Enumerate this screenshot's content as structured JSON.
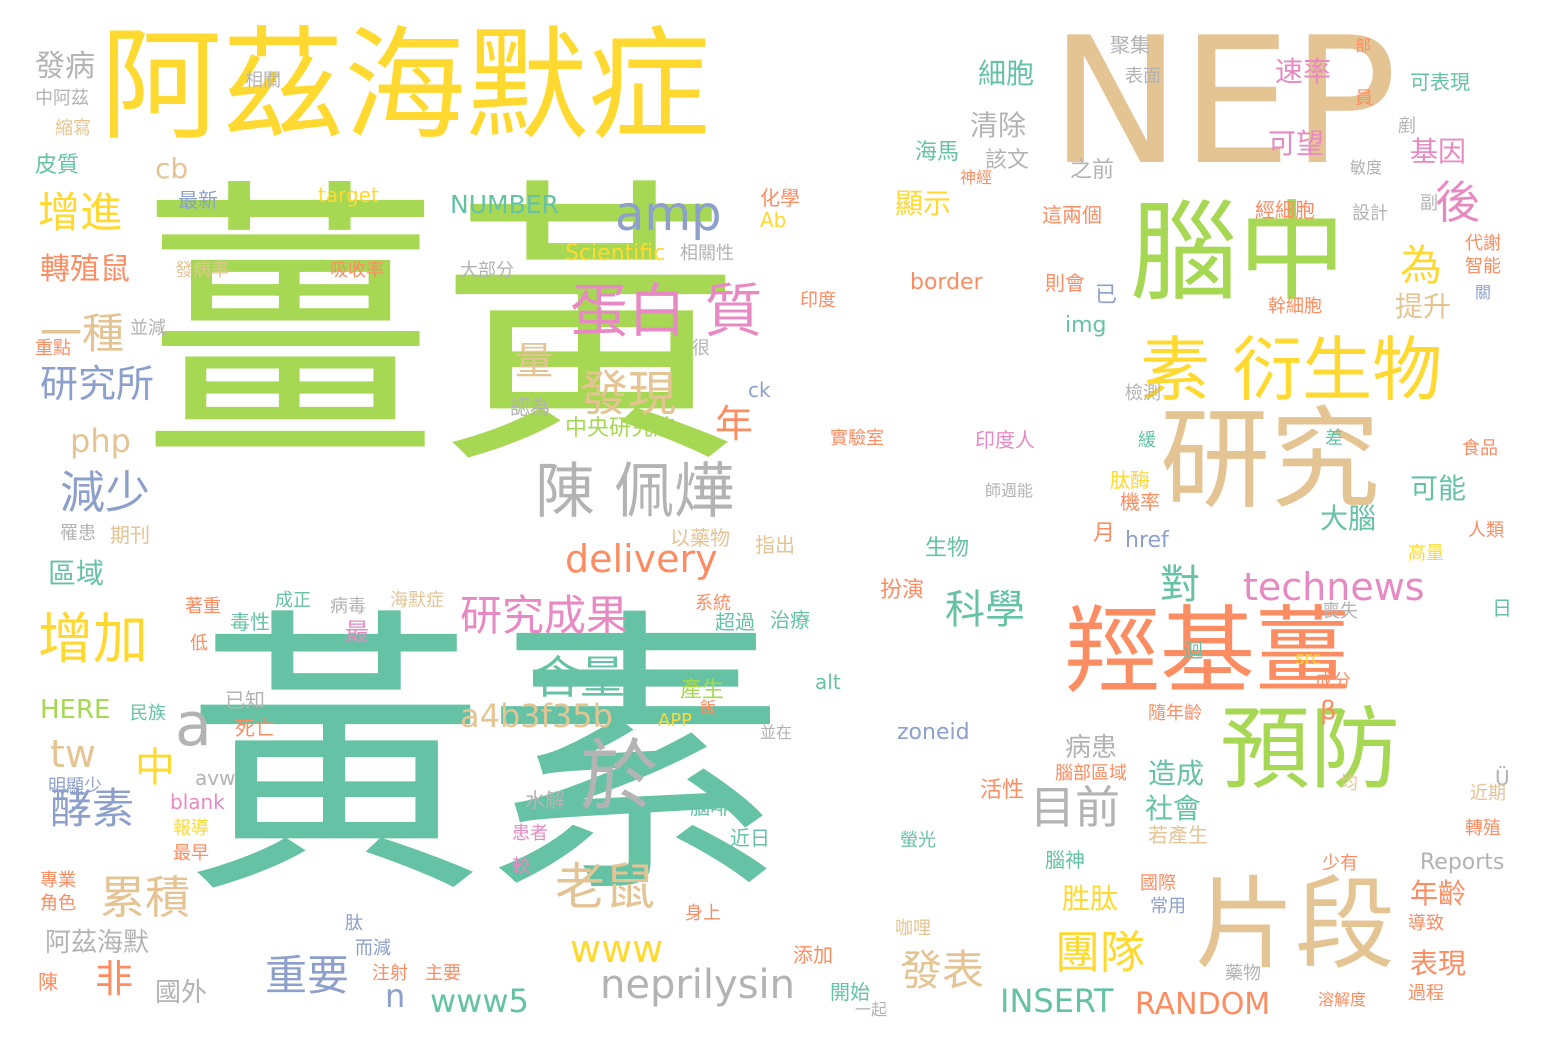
{
  "palette": {
    "green": "#A6D854",
    "teal": "#66C2A5",
    "tan": "#E5C494",
    "yellow": "#FFD92F",
    "orange": "#FC8D62",
    "pink": "#E78AC3",
    "blue": "#8DA0CB",
    "gray": "#B3B3B3"
  },
  "words": [
    {
      "id": "huangjiang",
      "text": "薑黃",
      "color": "green"
    },
    {
      "id": "huangsu",
      "text": "黃素",
      "color": "teal"
    },
    {
      "id": "alzheimer",
      "text": "阿茲海默症",
      "color": "yellow"
    },
    {
      "id": "nep",
      "text": "NEP",
      "color": "tan"
    },
    {
      "id": "naozhong",
      "text": "腦中",
      "color": "green"
    },
    {
      "id": "yanjiu",
      "text": "研究",
      "color": "tan"
    },
    {
      "id": "qiangji",
      "text": "羥基薑",
      "color": "orange"
    },
    {
      "id": "yufang",
      "text": "預防",
      "color": "green"
    },
    {
      "id": "pianduan",
      "text": "片段",
      "color": "tan"
    },
    {
      "id": "su-yanshengwu",
      "text": "素 衍生物",
      "color": "yellow"
    },
    {
      "id": "danbaizhi",
      "text": "蛋白 質",
      "color": "pink"
    },
    {
      "id": "chenpeihua",
      "text": "陳 佩燁",
      "color": "gray"
    },
    {
      "id": "yu",
      "text": "於",
      "color": "gray"
    },
    {
      "id": "zengjia",
      "text": "增加",
      "color": "yellow"
    },
    {
      "id": "amp",
      "text": "amp",
      "color": "blue"
    },
    {
      "id": "faxian",
      "text": "發現",
      "color": "tan"
    },
    {
      "id": "yanjiuchengguo",
      "text": "研究成果",
      "color": "pink"
    },
    {
      "id": "technews",
      "text": "technews",
      "color": "pink"
    },
    {
      "id": "zengjin",
      "text": "增進",
      "color": "yellow"
    },
    {
      "id": "jianshao",
      "text": "減少",
      "color": "blue"
    },
    {
      "id": "meisu",
      "text": "酵素",
      "color": "blue"
    },
    {
      "id": "leiji",
      "text": "累積",
      "color": "tan"
    },
    {
      "id": "laoshu",
      "text": "老鼠",
      "color": "tan"
    },
    {
      "id": "neprilysin",
      "text": "neprilysin",
      "color": "gray"
    },
    {
      "id": "www5",
      "text": "www5",
      "color": "teal"
    },
    {
      "id": "www",
      "text": "www",
      "color": "yellow"
    },
    {
      "id": "tuandui",
      "text": "團隊",
      "color": "yellow"
    },
    {
      "id": "mubiao",
      "text": "目前",
      "color": "gray"
    },
    {
      "id": "yanjiusuo",
      "text": "研究所",
      "color": "blue"
    },
    {
      "id": "delivery",
      "text": "delivery",
      "color": "orange"
    },
    {
      "id": "hanliang",
      "text": "含量",
      "color": "teal"
    },
    {
      "id": "a4b3",
      "text": "a4b3f35b",
      "color": "tan"
    },
    {
      "id": "zhuanzhishu",
      "text": "轉殖鼠",
      "color": "orange"
    },
    {
      "id": "kexue",
      "text": "科學",
      "color": "teal"
    },
    {
      "id": "dui",
      "text": "對",
      "color": "teal"
    },
    {
      "id": "yizhong",
      "text": "一種",
      "color": "tan"
    },
    {
      "id": "zhongyao",
      "text": "重要",
      "color": "blue"
    },
    {
      "id": "fabiao",
      "text": "發表",
      "color": "tan"
    },
    {
      "id": "insert",
      "text": "INSERT",
      "color": "teal"
    },
    {
      "id": "random",
      "text": "RANDOM",
      "color": "orange"
    },
    {
      "id": "tw",
      "text": "tw",
      "color": "tan"
    },
    {
      "id": "zhong-small",
      "text": "中",
      "color": "yellow"
    },
    {
      "id": "fei",
      "text": "非",
      "color": "orange"
    },
    {
      "id": "php",
      "text": "php",
      "color": "tan"
    },
    {
      "id": "nian",
      "text": "年",
      "color": "orange"
    },
    {
      "id": "houhou",
      "text": "後",
      "color": "pink"
    },
    {
      "id": "wei",
      "text": "為",
      "color": "yellow"
    },
    {
      "id": "a",
      "text": "a",
      "color": "gray"
    },
    {
      "id": "n",
      "text": "n",
      "color": "blue"
    },
    {
      "id": "liang",
      "text": "量",
      "color": "tan"
    },
    {
      "id": "number",
      "text": "NUMBER",
      "color": "teal"
    },
    {
      "id": "cb",
      "text": "cb",
      "color": "tan"
    },
    {
      "id": "xianshi",
      "text": "顯示",
      "color": "yellow"
    },
    {
      "id": "qingchu",
      "text": "清除",
      "color": "gray"
    },
    {
      "id": "xibao",
      "text": "細胞",
      "color": "teal"
    },
    {
      "id": "sulv",
      "text": "速率",
      "color": "pink"
    },
    {
      "id": "kewang",
      "text": "可望",
      "color": "pink"
    },
    {
      "id": "jiyin",
      "text": "基因",
      "color": "pink"
    },
    {
      "id": "tisheng",
      "text": "提升",
      "color": "tan"
    },
    {
      "id": "keneng",
      "text": "可能",
      "color": "teal"
    },
    {
      "id": "danao",
      "text": "大腦",
      "color": "teal"
    },
    {
      "id": "niannling",
      "text": "年齡",
      "color": "orange"
    },
    {
      "id": "biaoxian",
      "text": "表現",
      "color": "orange"
    },
    {
      "id": "shehui",
      "text": "社會",
      "color": "teal"
    },
    {
      "id": "zaocheng",
      "text": "造成",
      "color": "teal"
    },
    {
      "id": "bingzhe",
      "text": "病患",
      "color": "gray"
    },
    {
      "id": "shengtai",
      "text": "胜肽",
      "color": "yellow"
    },
    {
      "id": "quyu",
      "text": "區域",
      "color": "teal"
    },
    {
      "id": "zui",
      "text": "最",
      "color": "pink"
    },
    {
      "id": "fabing",
      "text": "發病",
      "color": "gray"
    },
    {
      "id": "pizhi",
      "text": "皮質",
      "color": "teal"
    },
    {
      "id": "here",
      "text": "HERE",
      "color": "green"
    },
    {
      "id": "azhm",
      "text": "阿茲海默",
      "color": "gray"
    },
    {
      "id": "guowai",
      "text": "國外",
      "color": "gray"
    },
    {
      "id": "ab",
      "text": "Ab",
      "color": "yellow"
    },
    {
      "id": "target",
      "text": "target",
      "color": "yellow"
    },
    {
      "id": "scientific",
      "text": "Scientific",
      "color": "yellow"
    },
    {
      "id": "border",
      "text": "border",
      "color": "orange"
    },
    {
      "id": "img",
      "text": "img",
      "color": "teal"
    },
    {
      "id": "ck",
      "text": "ck",
      "color": "blue"
    },
    {
      "id": "href",
      "text": "href",
      "color": "blue"
    },
    {
      "id": "alt",
      "text": "alt",
      "color": "teal"
    },
    {
      "id": "zoneid",
      "text": "zoneid",
      "color": "blue"
    },
    {
      "id": "app",
      "text": "APP",
      "color": "yellow"
    },
    {
      "id": "src",
      "text": "src",
      "color": "yellow"
    },
    {
      "id": "blank",
      "text": "blank",
      "color": "pink"
    },
    {
      "id": "avw",
      "text": "avw",
      "color": "gray"
    },
    {
      "id": "reports",
      "text": "Reports",
      "color": "gray"
    },
    {
      "id": "beta",
      "text": "β",
      "color": "orange"
    },
    {
      "id": "u-uml",
      "text": "Ü",
      "color": "gray"
    },
    {
      "id": "zhongyanjiuyuan",
      "text": "中央研究院",
      "color": "green"
    },
    {
      "id": "huaxue",
      "text": "化學",
      "color": "orange"
    },
    {
      "id": "haima",
      "text": "海馬",
      "color": "teal"
    },
    {
      "id": "gaiwen",
      "text": "該文",
      "color": "gray"
    },
    {
      "id": "zhiqian",
      "text": "之前",
      "color": "gray"
    },
    {
      "id": "juji",
      "text": "聚集",
      "color": "gray"
    },
    {
      "id": "biaomian",
      "text": "表面",
      "color": "gray"
    },
    {
      "id": "kebiaoxian",
      "text": "可表現",
      "color": "teal"
    },
    {
      "id": "zhongazi",
      "text": "中阿茲",
      "color": "gray"
    },
    {
      "id": "xiangguan",
      "text": "相關",
      "color": "gray"
    },
    {
      "id": "suoduan",
      "text": "縮寫",
      "color": "tan"
    },
    {
      "id": "zuixin",
      "text": "最新",
      "color": "blue"
    },
    {
      "id": "zhelianggе",
      "text": "這兩個",
      "color": "orange"
    },
    {
      "id": "jingxibao",
      "text": "經細胞",
      "color": "orange"
    },
    {
      "id": "sheji",
      "text": "設計",
      "color": "gray"
    },
    {
      "id": "fu",
      "text": "副",
      "color": "gray"
    },
    {
      "id": "daixie",
      "text": "代謝",
      "color": "orange"
    },
    {
      "id": "zhineng",
      "text": "智能",
      "color": "orange"
    },
    {
      "id": "fabinglv",
      "text": "發病率",
      "color": "tan"
    },
    {
      "id": "xishoulv",
      "text": "吸收率",
      "color": "orange"
    },
    {
      "id": "dabufen",
      "text": "大部分",
      "color": "gray"
    },
    {
      "id": "xiangguanxing",
      "text": "相關性",
      "color": "gray"
    },
    {
      "id": "yindu",
      "text": "印度",
      "color": "orange"
    },
    {
      "id": "zehui",
      "text": "則會",
      "color": "orange"
    },
    {
      "id": "ganxibao",
      "text": "幹細胞",
      "color": "orange"
    },
    {
      "id": "bingjian",
      "text": "並減",
      "color": "gray"
    },
    {
      "id": "zhongdian",
      "text": "重點",
      "color": "orange"
    },
    {
      "id": "hen",
      "text": "很",
      "color": "gray"
    },
    {
      "id": "jiance",
      "text": "檢測",
      "color": "gray"
    },
    {
      "id": "shiyanshi",
      "text": "實驗室",
      "color": "orange"
    },
    {
      "id": "yindu-ren",
      "text": "印度人",
      "color": "pink"
    },
    {
      "id": "shipin",
      "text": "食品",
      "color": "orange"
    },
    {
      "id": "renwei",
      "text": "認為",
      "color": "gray"
    },
    {
      "id": "taimei",
      "text": "肽酶",
      "color": "yellow"
    },
    {
      "id": "jilv",
      "text": "機率",
      "color": "orange"
    },
    {
      "id": "gaoliang",
      "text": "高量",
      "color": "yellow"
    },
    {
      "id": "renlei",
      "text": "人類",
      "color": "orange"
    },
    {
      "id": "qikan",
      "text": "期刊",
      "color": "tan"
    },
    {
      "id": "yiyaowu",
      "text": "以藥物",
      "color": "tan"
    },
    {
      "id": "zhichu",
      "text": "指出",
      "color": "tan"
    },
    {
      "id": "shengwu",
      "text": "生物",
      "color": "teal"
    },
    {
      "id": "yue",
      "text": "月",
      "color": "orange"
    },
    {
      "id": "banyan",
      "text": "扮演",
      "color": "orange"
    },
    {
      "id": "zhuzhong",
      "text": "著重",
      "color": "orange"
    },
    {
      "id": "chengzheng",
      "text": "成正",
      "color": "teal"
    },
    {
      "id": "bingdu",
      "text": "病毒",
      "color": "gray"
    },
    {
      "id": "haimozheng",
      "text": "海默症",
      "color": "tan"
    },
    {
      "id": "xitong",
      "text": "系統",
      "color": "orange"
    },
    {
      "id": "duxing",
      "text": "毒性",
      "color": "teal"
    },
    {
      "id": "chaoguo",
      "text": "超過",
      "color": "teal"
    },
    {
      "id": "zhiliao",
      "text": "治療",
      "color": "teal"
    },
    {
      "id": "sangshi",
      "text": "喪失",
      "color": "gray"
    },
    {
      "id": "ri",
      "text": "日",
      "color": "teal"
    },
    {
      "id": "chengfen",
      "text": "成分",
      "color": "orange"
    },
    {
      "id": "chansheng",
      "text": "產生",
      "color": "green"
    },
    {
      "id": "minzu",
      "text": "民族",
      "color": "teal"
    },
    {
      "id": "yizhi",
      "text": "已知",
      "color": "gray"
    },
    {
      "id": "siwang",
      "text": "死亡",
      "color": "orange"
    },
    {
      "id": "mingxianshao",
      "text": "明顯少",
      "color": "blue"
    },
    {
      "id": "baodao",
      "text": "報導",
      "color": "yellow"
    },
    {
      "id": "zuizao",
      "text": "最早",
      "color": "orange"
    },
    {
      "id": "zhuanye",
      "text": "專業",
      "color": "orange"
    },
    {
      "id": "jiaose",
      "text": "角色",
      "color": "orange"
    },
    {
      "id": "chen-small",
      "text": "陳",
      "color": "orange"
    },
    {
      "id": "shuijie",
      "text": "水解",
      "color": "gray"
    },
    {
      "id": "huanzhe",
      "text": "患者",
      "color": "pink"
    },
    {
      "id": "jiao",
      "text": "較",
      "color": "pink"
    },
    {
      "id": "naofei",
      "text": "腦啡",
      "color": "teal"
    },
    {
      "id": "jinri",
      "text": "近日",
      "color": "teal"
    },
    {
      "id": "yingguang",
      "text": "螢光",
      "color": "teal"
    },
    {
      "id": "naoshen",
      "text": "腦神",
      "color": "teal"
    },
    {
      "id": "guoji",
      "text": "國際",
      "color": "orange"
    },
    {
      "id": "changyong",
      "text": "常用",
      "color": "blue"
    },
    {
      "id": "shenshang",
      "text": "身上",
      "color": "orange"
    },
    {
      "id": "tianjia",
      "text": "添加",
      "color": "orange"
    },
    {
      "id": "kali",
      "text": "咖哩",
      "color": "tan"
    },
    {
      "id": "daozhi",
      "text": "導致",
      "color": "orange"
    },
    {
      "id": "guocheng",
      "text": "過程",
      "color": "orange"
    },
    {
      "id": "yaowu",
      "text": "藥物",
      "color": "gray"
    },
    {
      "id": "rongjieduo",
      "text": "溶解度",
      "color": "orange"
    },
    {
      "id": "shaoyou",
      "text": "少有",
      "color": "orange"
    },
    {
      "id": "zhuanzhi",
      "text": "轉殖",
      "color": "orange"
    },
    {
      "id": "jinqi",
      "text": "近期",
      "color": "tan"
    },
    {
      "id": "junyun",
      "text": "均",
      "color": "tan"
    },
    {
      "id": "tai",
      "text": "肽",
      "color": "blue"
    },
    {
      "id": "erjian",
      "text": "而減",
      "color": "blue"
    },
    {
      "id": "zhushe",
      "text": "注射",
      "color": "orange"
    },
    {
      "id": "zhuyao",
      "text": "主要",
      "color": "orange"
    },
    {
      "id": "kaishi",
      "text": "開始",
      "color": "teal"
    },
    {
      "id": "yiqi",
      "text": "一起",
      "color": "gray"
    },
    {
      "id": "bingzai",
      "text": "並在",
      "color": "gray"
    },
    {
      "id": "suinianling",
      "text": "隨年齡",
      "color": "orange"
    },
    {
      "id": "naobuquyu",
      "text": "腦部區域",
      "color": "orange"
    },
    {
      "id": "huoxing",
      "text": "活性",
      "color": "orange"
    },
    {
      "id": "ruochansheng",
      "text": "若產生",
      "color": "tan"
    },
    {
      "id": "huan",
      "text": "緩",
      "color": "teal"
    },
    {
      "id": "cha",
      "text": "差",
      "color": "teal"
    },
    {
      "id": "hui",
      "text": "迴",
      "color": "teal"
    },
    {
      "id": "shijingneng",
      "text": "師週能",
      "color": "gray"
    },
    {
      "id": "yuan",
      "text": "員",
      "color": "orange"
    },
    {
      "id": "bu",
      "text": "部",
      "color": "orange"
    },
    {
      "id": "minganlv",
      "text": "敏度",
      "color": "gray"
    },
    {
      "id": "shenjing",
      "text": "神經",
      "color": "orange"
    },
    {
      "id": "yi",
      "text": "已",
      "color": "blue"
    },
    {
      "id": "guan",
      "text": "關",
      "color": "blue"
    },
    {
      "id": "fan",
      "text": "飯",
      "color": "orange"
    },
    {
      "id": "zhi",
      "text": "剷",
      "color": "gray"
    },
    {
      "id": "di",
      "text": "低",
      "color": "orange"
    },
    {
      "id": "huanzhe2",
      "text": "罹患",
      "color": "gray"
    }
  ]
}
